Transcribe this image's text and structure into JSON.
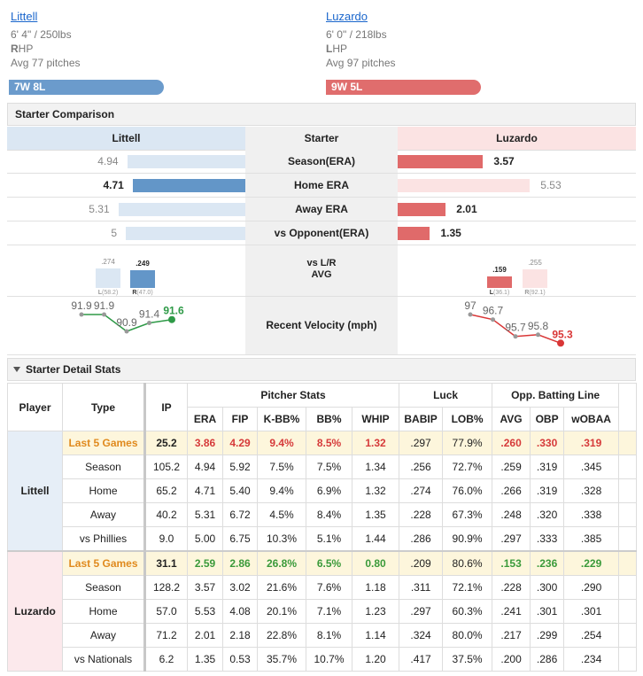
{
  "pitchers": [
    {
      "name": "Littell",
      "size": "6' 4\" / 250lbs",
      "hand": "R",
      "hand_rest": "HP",
      "pitches": "Avg 77 pitches",
      "record": "7W 8L",
      "color": "#6b9bcc"
    },
    {
      "name": "Luzardo",
      "size": "6' 0\" / 218lbs",
      "hand": "L",
      "hand_rest": "HP",
      "pitches": "Avg 97 pitches",
      "record": "9W 5L",
      "color": "#e06d6d"
    }
  ],
  "comparison": {
    "title": "Starter Comparison",
    "header": [
      "Littell",
      "Starter",
      "Luzardo"
    ],
    "strong_colors": [
      "#6396c8",
      "#e06a6a"
    ],
    "light_colors": [
      "#dbe7f3",
      "#fbe3e3"
    ],
    "rows": [
      {
        "label": "Season(ERA)",
        "left": 4.94,
        "right": 3.57
      },
      {
        "label": "Home ERA",
        "left": 4.71,
        "right": 5.53
      },
      {
        "label": "Away ERA",
        "left": 5.31,
        "right": 2.01
      },
      {
        "label": "vs Opponent(ERA)",
        "left": 5,
        "right": 1.35
      }
    ],
    "split": {
      "label": [
        "vs L/R",
        "AVG"
      ],
      "left": [
        {
          "avg": {
            "value": 0.274,
            "label": ".274"
          },
          "side": "L",
          "pa": "(58.2)"
        },
        {
          "avg": {
            "value": 0.249,
            "label": ".249"
          },
          "side": "R",
          "pa": "(47.0)"
        }
      ],
      "right": [
        {
          "avg": {
            "value": 0.159,
            "label": ".159"
          },
          "side": "L",
          "pa": "(36.1)"
        },
        {
          "avg": {
            "value": 0.255,
            "label": ".255"
          },
          "side": "R",
          "pa": "(92.1)"
        }
      ]
    },
    "velocity": {
      "label": "Recent Velocity (mph)",
      "left": [
        91.9,
        91.9,
        90.9,
        91.4,
        91.6
      ],
      "right": [
        97,
        96.7,
        95.7,
        95.8,
        95.3
      ],
      "colors": [
        "#2e9a47",
        "#d93636"
      ]
    }
  },
  "detail": {
    "title": "Starter Detail Stats",
    "player": "Player",
    "type": "Type",
    "ip": "IP",
    "groups": [
      {
        "name": "Pitcher Stats",
        "cols": [
          "ERA",
          "FIP",
          "K-BB%",
          "BB%",
          "WHIP"
        ]
      },
      {
        "name": "Luck",
        "cols": [
          "BABIP",
          "LOB%"
        ]
      },
      {
        "name": "Opp. Batting Line",
        "cols": [
          "AVG",
          "OBP",
          "wOBAA"
        ]
      }
    ],
    "players": [
      {
        "name": "Littell",
        "background": "#e6eef7",
        "highlight": "#d63a3a",
        "rows": [
          [
            "Last 5 Games",
            "25.2",
            "3.86",
            "4.29",
            "9.4%",
            "8.5%",
            "1.32",
            ".297",
            "77.9%",
            ".260",
            ".330",
            ".319"
          ],
          [
            "Season",
            "105.2",
            "4.94",
            "5.92",
            "7.5%",
            "7.5%",
            "1.34",
            ".256",
            "72.7%",
            ".259",
            ".319",
            ".345"
          ],
          [
            "Home",
            "65.2",
            "4.71",
            "5.40",
            "9.4%",
            "6.9%",
            "1.32",
            ".274",
            "76.0%",
            ".266",
            ".319",
            ".328"
          ],
          [
            "Away",
            "40.2",
            "5.31",
            "6.72",
            "4.5%",
            "8.4%",
            "1.35",
            ".228",
            "67.3%",
            ".248",
            ".320",
            ".338"
          ],
          [
            "vs Phillies",
            "9.0",
            "5.00",
            "6.75",
            "10.3%",
            "5.1%",
            "1.44",
            ".286",
            "90.9%",
            ".297",
            ".333",
            ".385"
          ]
        ]
      },
      {
        "name": "Luzardo",
        "background": "#fce9ec",
        "highlight": "#3a9a3a",
        "rows": [
          [
            "Last 5 Games",
            "31.1",
            "2.59",
            "2.86",
            "26.8%",
            "6.5%",
            "0.80",
            ".209",
            "80.6%",
            ".153",
            ".236",
            ".229"
          ],
          [
            "Season",
            "128.2",
            "3.57",
            "3.02",
            "21.6%",
            "7.6%",
            "1.18",
            ".311",
            "72.1%",
            ".228",
            ".300",
            ".290"
          ],
          [
            "Home",
            "57.0",
            "5.53",
            "4.08",
            "20.1%",
            "7.1%",
            "1.23",
            ".297",
            "60.3%",
            ".241",
            ".301",
            ".301"
          ],
          [
            "Away",
            "71.2",
            "2.01",
            "2.18",
            "22.8%",
            "8.1%",
            "1.14",
            ".324",
            "80.0%",
            ".217",
            ".299",
            ".254"
          ],
          [
            "vs Nationals",
            "6.2",
            "1.35",
            "0.53",
            "35.7%",
            "10.7%",
            "1.20",
            ".417",
            "37.5%",
            ".200",
            ".286",
            ".234"
          ]
        ]
      }
    ]
  }
}
